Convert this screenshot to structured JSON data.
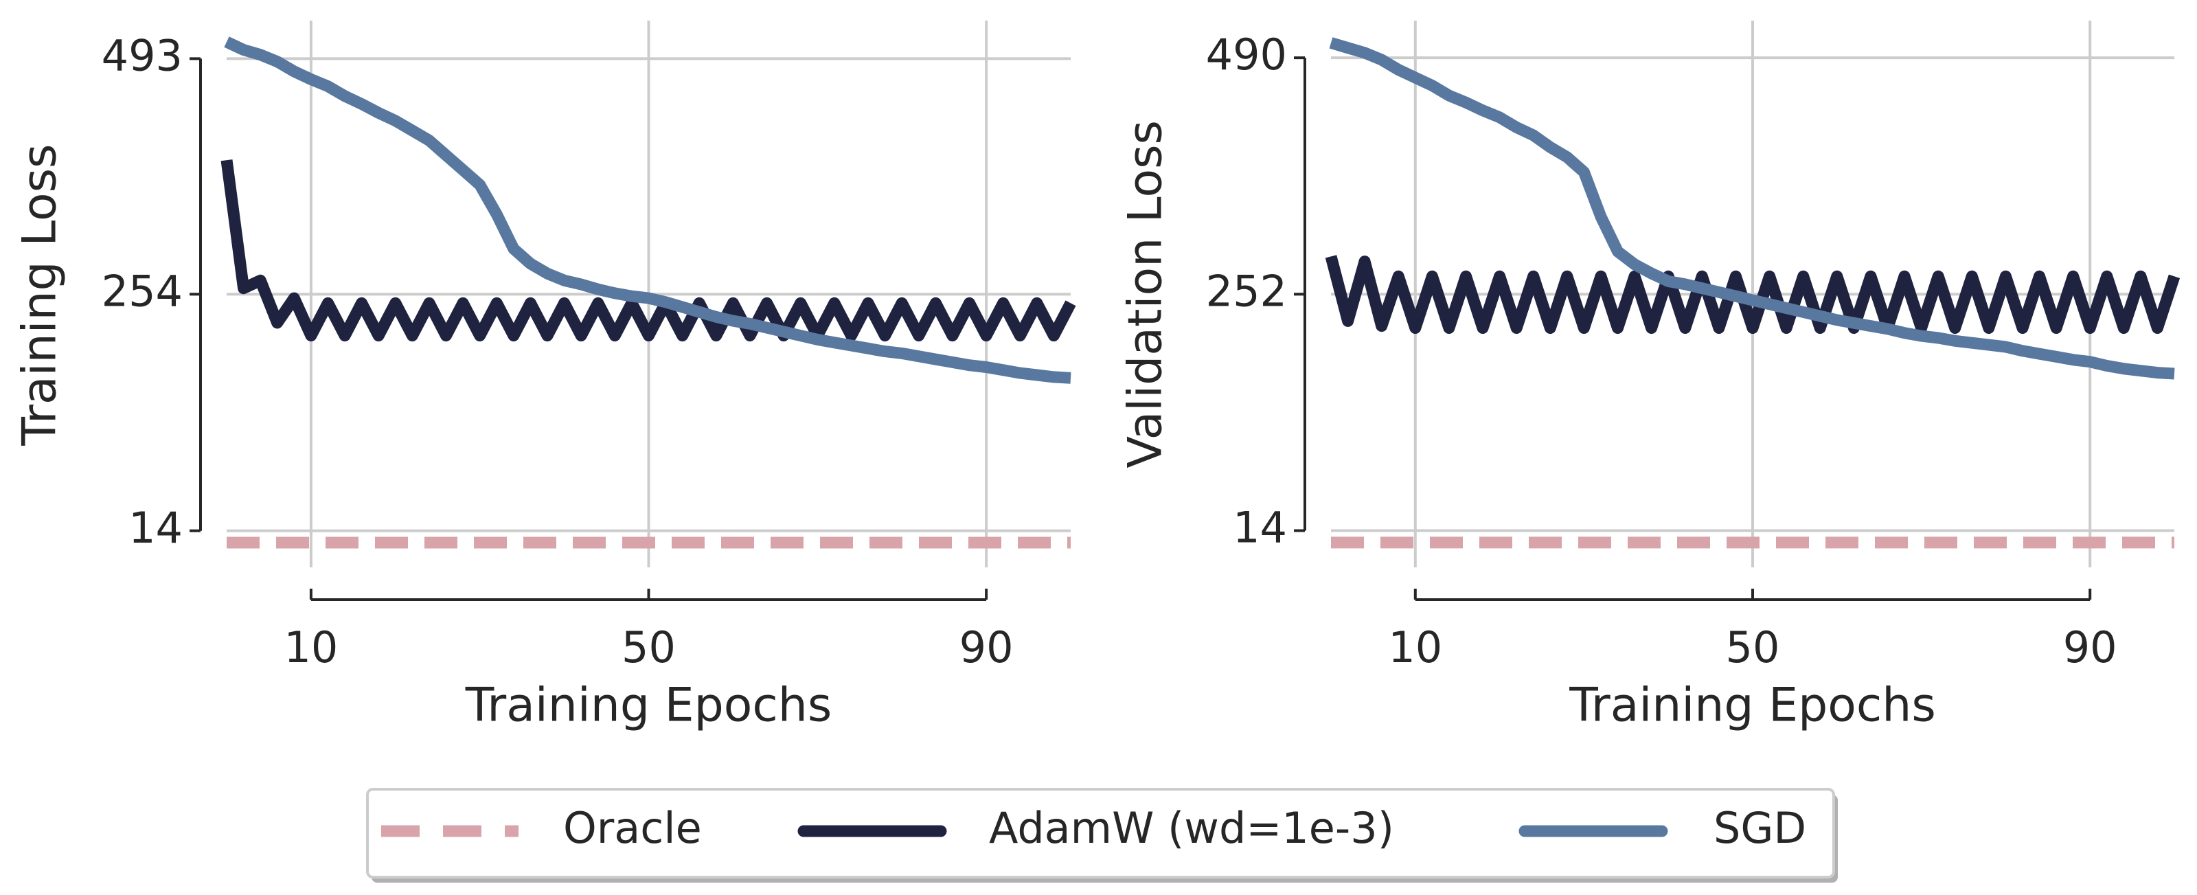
{
  "chart_data": [
    {
      "type": "line",
      "ylabel": "Training Loss",
      "xlabel": "Training Epochs",
      "xlim": [
        0,
        100
      ],
      "ylim": [
        -5,
        510
      ],
      "xticks": [
        10,
        50,
        90
      ],
      "yticks": [
        14,
        254,
        493
      ],
      "grid": true,
      "legend": "below",
      "series": [
        {
          "name": "Oracle",
          "color": "#d8a4a9",
          "linestyle": "dashed",
          "x": [
            0,
            100
          ],
          "values": [
            2,
            2
          ]
        },
        {
          "name": "AdamW (wd=1e-3)",
          "color": "#1f2340",
          "linestyle": "solid",
          "x": [
            0,
            2,
            4,
            6,
            8,
            10,
            12,
            14,
            16,
            18,
            20,
            22,
            24,
            26,
            28,
            30,
            32,
            34,
            36,
            38,
            40,
            42,
            44,
            46,
            48,
            50,
            52,
            54,
            56,
            58,
            60,
            62,
            64,
            66,
            68,
            70,
            72,
            74,
            76,
            78,
            80,
            82,
            84,
            86,
            88,
            90,
            92,
            94,
            96,
            98,
            100
          ],
          "values": [
            390,
            260,
            268,
            225,
            250,
            212,
            245,
            212,
            245,
            212,
            245,
            212,
            245,
            212,
            245,
            212,
            245,
            212,
            245,
            212,
            245,
            212,
            245,
            212,
            245,
            212,
            245,
            212,
            245,
            212,
            245,
            212,
            245,
            212,
            245,
            212,
            245,
            212,
            245,
            212,
            245,
            212,
            245,
            212,
            245,
            212,
            245,
            212,
            245,
            212,
            245
          ]
        },
        {
          "name": "SGD",
          "color": "#5878a0",
          "linestyle": "solid",
          "x": [
            0,
            2,
            4,
            6,
            8,
            10,
            12,
            14,
            16,
            18,
            20,
            22,
            24,
            26,
            28,
            30,
            32,
            34,
            36,
            38,
            40,
            42,
            44,
            46,
            48,
            50,
            52,
            54,
            56,
            58,
            60,
            62,
            64,
            66,
            68,
            70,
            72,
            74,
            76,
            78,
            80,
            82,
            84,
            86,
            88,
            90,
            92,
            94,
            96,
            98,
            100
          ],
          "values": [
            510,
            502,
            497,
            490,
            480,
            472,
            465,
            455,
            447,
            438,
            430,
            420,
            410,
            395,
            380,
            365,
            335,
            300,
            285,
            275,
            268,
            264,
            259,
            255,
            252,
            250,
            246,
            241,
            236,
            231,
            227,
            224,
            220,
            216,
            212,
            208,
            205,
            202,
            199,
            196,
            194,
            191,
            188,
            185,
            182,
            180,
            177,
            174,
            172,
            170,
            169
          ]
        }
      ]
    },
    {
      "type": "line",
      "ylabel": "Validation Loss",
      "xlabel": "Training Epochs",
      "xlim": [
        0,
        100
      ],
      "ylim": [
        -5,
        506
      ],
      "xticks": [
        10,
        50,
        90
      ],
      "yticks": [
        14,
        252,
        490
      ],
      "grid": true,
      "series": [
        {
          "name": "Oracle",
          "color": "#d8a4a9",
          "linestyle": "dashed",
          "x": [
            0,
            100
          ],
          "values": [
            2,
            2
          ]
        },
        {
          "name": "AdamW (wd=1e-3)",
          "color": "#1f2340",
          "linestyle": "solid",
          "x": [
            0,
            2,
            4,
            6,
            8,
            10,
            12,
            14,
            16,
            18,
            20,
            22,
            24,
            26,
            28,
            30,
            32,
            34,
            36,
            38,
            40,
            42,
            44,
            46,
            48,
            50,
            52,
            54,
            56,
            58,
            60,
            62,
            64,
            66,
            68,
            70,
            72,
            74,
            76,
            78,
            80,
            82,
            84,
            86,
            88,
            90,
            92,
            94,
            96,
            98,
            100
          ],
          "values": [
            290,
            225,
            285,
            220,
            270,
            218,
            270,
            218,
            270,
            218,
            270,
            218,
            270,
            218,
            270,
            218,
            270,
            218,
            270,
            218,
            270,
            218,
            270,
            218,
            270,
            218,
            270,
            218,
            270,
            218,
            270,
            218,
            270,
            218,
            270,
            218,
            270,
            218,
            270,
            218,
            270,
            218,
            270,
            218,
            270,
            218,
            270,
            218,
            270,
            218,
            270
          ]
        },
        {
          "name": "SGD",
          "color": "#5878a0",
          "linestyle": "solid",
          "x": [
            0,
            2,
            4,
            6,
            8,
            10,
            12,
            14,
            16,
            18,
            20,
            22,
            24,
            26,
            28,
            30,
            32,
            34,
            36,
            38,
            40,
            42,
            44,
            46,
            48,
            50,
            52,
            54,
            56,
            58,
            60,
            62,
            64,
            66,
            68,
            70,
            72,
            74,
            76,
            78,
            80,
            82,
            84,
            86,
            88,
            90,
            92,
            94,
            96,
            98,
            100
          ],
          "values": [
            505,
            500,
            495,
            488,
            478,
            470,
            462,
            452,
            445,
            437,
            430,
            420,
            412,
            400,
            390,
            375,
            330,
            295,
            282,
            273,
            265,
            262,
            258,
            254,
            250,
            246,
            242,
            238,
            234,
            230,
            226,
            223,
            220,
            217,
            213,
            210,
            208,
            205,
            203,
            201,
            199,
            195,
            192,
            189,
            186,
            184,
            180,
            177,
            175,
            173,
            172
          ]
        }
      ]
    }
  ]
}
